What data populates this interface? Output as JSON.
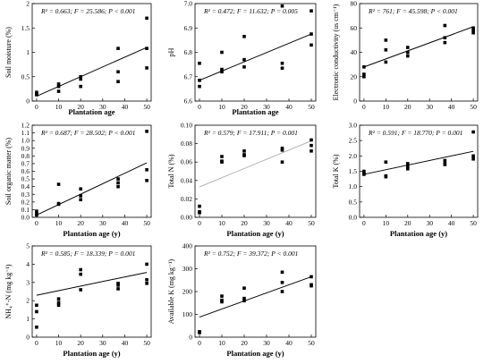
{
  "chart_data": [
    {
      "id": "soil-moisture",
      "type": "scatter",
      "ylabel": "Soil moisture (%)",
      "xlabel": "Plantation age",
      "stat": "R² = 0.663; F = 25.586; P < 0.001",
      "xlim": [
        -2,
        52
      ],
      "ylim": [
        0,
        2
      ],
      "xticks": [
        0,
        10,
        20,
        30,
        40,
        50
      ],
      "yticks": [
        0,
        0.5,
        1,
        1.5,
        2
      ],
      "ytick_labels": [
        "0",
        "0.5",
        "1",
        "1.5",
        "2"
      ],
      "points": [
        [
          0,
          0.15
        ],
        [
          0,
          0.13
        ],
        [
          0,
          0.18
        ],
        [
          10,
          0.35
        ],
        [
          10,
          0.3
        ],
        [
          10,
          0.2
        ],
        [
          20,
          0.5
        ],
        [
          20,
          0.45
        ],
        [
          20,
          0.3
        ],
        [
          37,
          1.08
        ],
        [
          37,
          0.6
        ],
        [
          37,
          0.4
        ],
        [
          50,
          1.7
        ],
        [
          50,
          1.08
        ],
        [
          50,
          0.68
        ]
      ],
      "fit": [
        [
          0,
          0.1
        ],
        [
          50,
          1.1
        ]
      ],
      "fit_color": "#000000"
    },
    {
      "id": "ph",
      "type": "scatter",
      "ylabel": "pH",
      "xlabel": "Plantation age",
      "stat": "R² = 0.472; F = 11.632; P = 0.005",
      "xlim": [
        -2,
        52
      ],
      "ylim": [
        6.6,
        7.0
      ],
      "xticks": [
        0,
        10,
        20,
        30,
        40,
        50
      ],
      "yticks": [
        6.6,
        6.7,
        6.8,
        6.9,
        7.0
      ],
      "ytick_labels": [
        "6.6",
        "6.7",
        "6.8",
        "6.9",
        "7.0"
      ],
      "points": [
        [
          0,
          6.755
        ],
        [
          0,
          6.685
        ],
        [
          0,
          6.66
        ],
        [
          10,
          6.8
        ],
        [
          10,
          6.73
        ],
        [
          10,
          6.72
        ],
        [
          20,
          6.865
        ],
        [
          20,
          6.77
        ],
        [
          20,
          6.74
        ],
        [
          37,
          6.99
        ],
        [
          37,
          6.755
        ],
        [
          37,
          6.735
        ],
        [
          50,
          6.97
        ],
        [
          50,
          6.875
        ],
        [
          50,
          6.83
        ]
      ],
      "fit": [
        [
          0,
          6.685
        ],
        [
          50,
          6.875
        ]
      ],
      "fit_color": "#000000"
    },
    {
      "id": "electronic-conductivity",
      "type": "scatter",
      "ylabel": "Electronic conductivity (us cm⁻¹)",
      "xlabel": "",
      "stat": "R² = 761; F = 45.598; P < 0.001",
      "xlim": [
        -2,
        52
      ],
      "ylim": [
        0,
        80
      ],
      "xticks": [
        0,
        10,
        20,
        30,
        40,
        50
      ],
      "yticks": [
        0,
        20,
        40,
        60,
        80
      ],
      "ytick_labels": [
        "0",
        "20",
        "40",
        "60",
        "80"
      ],
      "points": [
        [
          0,
          28
        ],
        [
          0,
          22
        ],
        [
          0,
          20
        ],
        [
          10,
          50
        ],
        [
          10,
          42
        ],
        [
          10,
          32
        ],
        [
          20,
          44
        ],
        [
          20,
          40
        ],
        [
          20,
          37
        ],
        [
          37,
          62
        ],
        [
          37,
          52
        ],
        [
          37,
          48
        ],
        [
          50,
          60
        ],
        [
          50,
          58
        ],
        [
          50,
          56
        ]
      ],
      "fit": [
        [
          0,
          28
        ],
        [
          50,
          61
        ]
      ],
      "fit_color": "#000000"
    },
    {
      "id": "soil-organic-matter",
      "type": "scatter",
      "ylabel": "Soil organic matter (%)",
      "xlabel": "Plantation age (y)",
      "stat": "R² = 0.687; F = 28.502; P < 0.001",
      "xlim": [
        -2,
        52
      ],
      "ylim": [
        0,
        1.2
      ],
      "xticks": [
        0,
        10,
        20,
        30,
        40,
        50
      ],
      "yticks": [
        0,
        0.1,
        0.2,
        0.3,
        0.4,
        0.5,
        0.6,
        0.7,
        0.8,
        0.9,
        1.0,
        1.1,
        1.2
      ],
      "ytick_labels": [
        "0.0",
        "0.1",
        "0.2",
        "0.3",
        "0.4",
        "0.5",
        "0.6",
        "0.7",
        "0.8",
        "0.9",
        "1.0",
        "1.1",
        "1.2"
      ],
      "points": [
        [
          0,
          0.08
        ],
        [
          0,
          0.05
        ],
        [
          0,
          0.03
        ],
        [
          10,
          0.43
        ],
        [
          10,
          0.18
        ],
        [
          10,
          0.17
        ],
        [
          20,
          0.37
        ],
        [
          20,
          0.28
        ],
        [
          20,
          0.23
        ],
        [
          37,
          0.5
        ],
        [
          37,
          0.45
        ],
        [
          37,
          0.4
        ],
        [
          50,
          1.12
        ],
        [
          50,
          0.62
        ],
        [
          50,
          0.48
        ]
      ],
      "fit": [
        [
          0,
          0.03
        ],
        [
          50,
          0.71
        ]
      ],
      "fit_color": "#000000"
    },
    {
      "id": "total-n",
      "type": "scatter",
      "ylabel": "Total N (%)",
      "xlabel": "Plantation age (y)",
      "stat": "R² = 0.579; F = 17.911; P = 0.001",
      "xlim": [
        -2,
        52
      ],
      "ylim": [
        0,
        0.1
      ],
      "xticks": [
        0,
        10,
        20,
        30,
        40,
        50
      ],
      "yticks": [
        0,
        0.02,
        0.04,
        0.06,
        0.08,
        0.1
      ],
      "ytick_labels": [
        "0.00",
        "0.02",
        "0.04",
        "0.06",
        "0.08",
        "0.10"
      ],
      "points": [
        [
          0,
          0.012
        ],
        [
          0,
          0.006
        ],
        [
          0,
          0.005
        ],
        [
          10,
          0.066
        ],
        [
          10,
          0.061
        ],
        [
          10,
          0.06
        ],
        [
          20,
          0.072
        ],
        [
          20,
          0.068
        ],
        [
          20,
          0.067
        ],
        [
          37,
          0.075
        ],
        [
          37,
          0.073
        ],
        [
          37,
          0.06
        ],
        [
          50,
          0.084
        ],
        [
          50,
          0.078
        ],
        [
          50,
          0.072
        ]
      ],
      "fit": [
        [
          0,
          0.033
        ],
        [
          50,
          0.083
        ]
      ],
      "fit_color": "#b5b5b5"
    },
    {
      "id": "total-k",
      "type": "scatter",
      "ylabel": "Total K (%)",
      "xlabel": "Plantation age (y)",
      "stat": "R² = 0.591; F = 18.770; P = 0.001",
      "xlim": [
        -2,
        52
      ],
      "ylim": [
        0,
        3
      ],
      "xticks": [
        0,
        10,
        20,
        30,
        40,
        50
      ],
      "yticks": [
        0,
        0.5,
        1,
        1.5,
        2,
        2.5,
        3
      ],
      "ytick_labels": [
        "0.0",
        "0.5",
        "1.0",
        "1.5",
        "2.0",
        "2.5",
        "3.0"
      ],
      "points": [
        [
          0,
          1.5
        ],
        [
          0,
          1.45
        ],
        [
          0,
          1.4
        ],
        [
          10,
          1.8
        ],
        [
          10,
          1.35
        ],
        [
          10,
          1.32
        ],
        [
          20,
          1.75
        ],
        [
          20,
          1.65
        ],
        [
          20,
          1.58
        ],
        [
          37,
          1.85
        ],
        [
          37,
          1.75
        ],
        [
          37,
          1.72
        ],
        [
          50,
          2.78
        ],
        [
          50,
          2.0
        ],
        [
          50,
          1.9
        ]
      ],
      "fit": [
        [
          0,
          1.4
        ],
        [
          50,
          2.15
        ]
      ],
      "fit_color": "#000000"
    },
    {
      "id": "nh4-n",
      "type": "scatter",
      "ylabel": "NH₄⁺-N (mg kg⁻¹)",
      "xlabel": "Plantation age (y)",
      "stat": "R² = 0.585; F = 18.339; P = 0.001",
      "xlim": [
        -2,
        52
      ],
      "ylim": [
        0,
        5
      ],
      "xticks": [
        0,
        10,
        20,
        30,
        40,
        50
      ],
      "yticks": [
        0,
        1,
        2,
        3,
        4,
        5
      ],
      "ytick_labels": [
        "0",
        "1",
        "2",
        "3",
        "4",
        "5"
      ],
      "points": [
        [
          0,
          1.75
        ],
        [
          0,
          1.4
        ],
        [
          0,
          0.55
        ],
        [
          10,
          2.1
        ],
        [
          10,
          1.9
        ],
        [
          10,
          1.75
        ],
        [
          20,
          3.7
        ],
        [
          20,
          3.45
        ],
        [
          20,
          2.6
        ],
        [
          37,
          2.95
        ],
        [
          37,
          2.85
        ],
        [
          37,
          2.65
        ],
        [
          50,
          4.0
        ],
        [
          50,
          3.15
        ],
        [
          50,
          2.95
        ]
      ],
      "fit": [
        [
          0,
          2.3
        ],
        [
          50,
          3.55
        ]
      ],
      "fit_color": "#000000"
    },
    {
      "id": "available-k",
      "type": "scatter",
      "ylabel": "Available K (mg kg⁻¹)",
      "xlabel": "Plantation age (y)",
      "stat": "R² = 0.752; F = 39.372; P < 0.001",
      "xlim": [
        -2,
        52
      ],
      "ylim": [
        0,
        400
      ],
      "xticks": [
        0,
        10,
        20,
        30,
        40,
        50
      ],
      "yticks": [
        0,
        100,
        200,
        300,
        400
      ],
      "ytick_labels": [
        "0",
        "100",
        "200",
        "300",
        "400"
      ],
      "points": [
        [
          0,
          24
        ],
        [
          0,
          22
        ],
        [
          0,
          20
        ],
        [
          10,
          180
        ],
        [
          10,
          162
        ],
        [
          10,
          155
        ],
        [
          20,
          215
        ],
        [
          20,
          170
        ],
        [
          20,
          160
        ],
        [
          37,
          285
        ],
        [
          37,
          240
        ],
        [
          37,
          200
        ],
        [
          50,
          265
        ],
        [
          50,
          230
        ],
        [
          50,
          225
        ]
      ],
      "fit": [
        [
          0,
          88
        ],
        [
          50,
          265
        ]
      ],
      "fit_color": "#000000"
    }
  ]
}
